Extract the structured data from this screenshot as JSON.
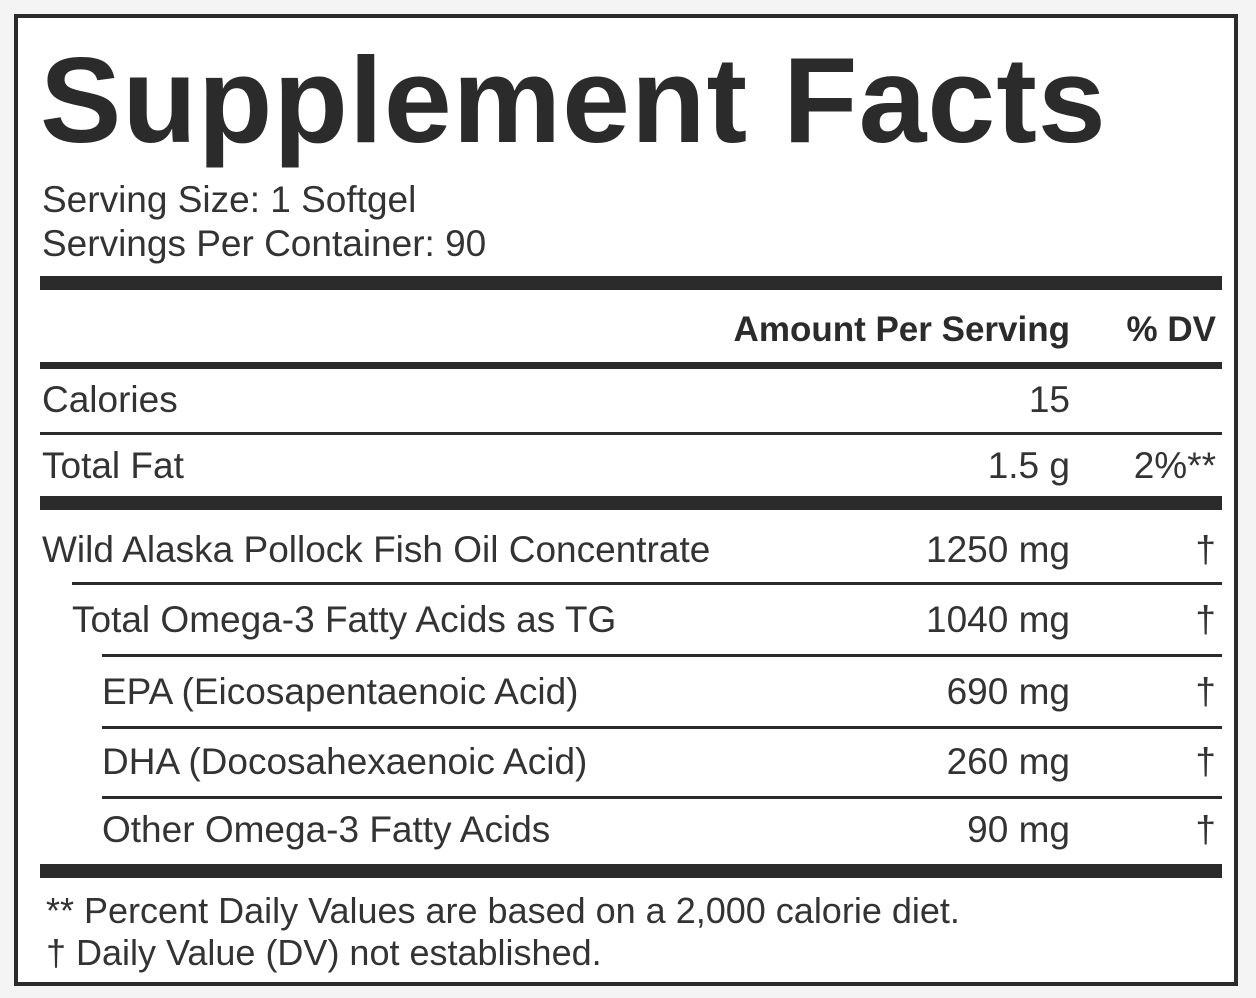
{
  "title": "Supplement Facts",
  "serving_size": "Serving Size: 1 Softgel",
  "servings_per_container": "Servings Per Container: 90",
  "header": {
    "amount": "Amount Per Serving",
    "dv": "% DV"
  },
  "rows": [
    {
      "name": "Calories",
      "amount": "15",
      "dv": ""
    },
    {
      "name": "Total Fat",
      "amount": "1.5 g",
      "dv": "2%**"
    },
    {
      "name": "Wild Alaska Pollock Fish Oil Concentrate",
      "amount": "1250 mg",
      "dv": "†"
    },
    {
      "name": "Total Omega-3 Fatty Acids as TG",
      "amount": "1040 mg",
      "dv": "†"
    },
    {
      "name": "EPA (Eicosapentaenoic Acid)",
      "amount": "690 mg",
      "dv": "†"
    },
    {
      "name": "DHA (Docosahexaenoic Acid)",
      "amount": "260 mg",
      "dv": "†"
    },
    {
      "name": "Other Omega-3 Fatty Acids",
      "amount": "90 mg",
      "dv": "†"
    }
  ],
  "footnotes": [
    "** Percent Daily Values are based on a 2,000 calorie diet.",
    "†  Daily Value (DV) not established."
  ]
}
